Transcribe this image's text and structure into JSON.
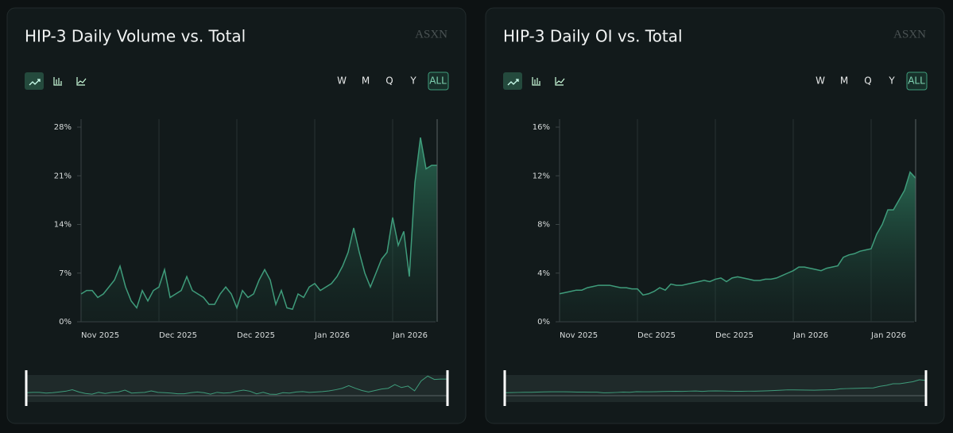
{
  "watermark": "ASXN",
  "controls": [
    "W",
    "M",
    "Q",
    "Y",
    "ALL"
  ],
  "chart_data": [
    {
      "type": "area",
      "title": "HIP-3 Daily Volume vs. Total",
      "color": "#3f9c7b",
      "categories": [
        "Nov 2025",
        null,
        null,
        null,
        null,
        null,
        null,
        null,
        null,
        null,
        null,
        null,
        null,
        null,
        "Dec 2025",
        null,
        null,
        null,
        null,
        null,
        null,
        null,
        null,
        null,
        null,
        null,
        null,
        null,
        "Dec 2025",
        null,
        null,
        null,
        null,
        null,
        null,
        null,
        null,
        null,
        null,
        null,
        null,
        null,
        "Jan 2026",
        null,
        null,
        null,
        null,
        null,
        null,
        null,
        null,
        null,
        null,
        null,
        null,
        null,
        "Jan 2026",
        null,
        null,
        null,
        null,
        null,
        null,
        null,
        null
      ],
      "values": [
        4,
        4.5,
        4.5,
        3.5,
        4,
        5,
        6,
        8,
        5,
        3,
        2,
        4.5,
        3,
        4.5,
        5,
        7.5,
        3.5,
        4,
        4.5,
        6.5,
        4.5,
        4,
        3.5,
        2.5,
        2.5,
        4,
        5,
        4,
        2,
        4.5,
        3.5,
        4,
        6,
        7.5,
        6,
        2.5,
        4.5,
        2,
        1.8,
        4,
        3.5,
        5,
        5.5,
        4.5,
        5,
        5.5,
        6.5,
        8,
        10,
        13.5,
        10,
        7,
        5,
        7,
        9,
        10,
        15,
        11,
        13,
        6.5,
        20,
        26.5,
        22,
        22.5,
        22.5
      ],
      "ylim": [
        0,
        28
      ],
      "yticks": [
        {
          "value": 0,
          "label": "0%"
        },
        {
          "value": 7,
          "label": "7%"
        },
        {
          "value": 14,
          "label": "14%"
        },
        {
          "value": 21,
          "label": "21%"
        },
        {
          "value": 28,
          "label": "28%"
        }
      ],
      "grid": true
    },
    {
      "type": "area",
      "title": "HIP-3 Daily OI vs. Total",
      "color": "#3f9c7b",
      "categories": [
        "Nov 2025",
        null,
        null,
        null,
        null,
        null,
        null,
        null,
        null,
        null,
        null,
        null,
        null,
        null,
        "Dec 2025",
        null,
        null,
        null,
        null,
        null,
        null,
        null,
        null,
        null,
        null,
        null,
        null,
        null,
        "Dec 2025",
        null,
        null,
        null,
        null,
        null,
        null,
        null,
        null,
        null,
        null,
        null,
        null,
        null,
        "Jan 2026",
        null,
        null,
        null,
        null,
        null,
        null,
        null,
        null,
        null,
        null,
        null,
        null,
        null,
        "Jan 2026",
        null,
        null,
        null,
        null,
        null,
        null,
        null,
        null
      ],
      "values": [
        2.3,
        2.4,
        2.5,
        2.6,
        2.6,
        2.8,
        2.9,
        3.0,
        3.0,
        3.0,
        2.9,
        2.8,
        2.8,
        2.7,
        2.7,
        2.2,
        2.3,
        2.5,
        2.8,
        2.6,
        3.1,
        3.0,
        3.0,
        3.1,
        3.2,
        3.3,
        3.4,
        3.3,
        3.5,
        3.6,
        3.3,
        3.6,
        3.7,
        3.6,
        3.5,
        3.4,
        3.4,
        3.5,
        3.5,
        3.6,
        3.8,
        4.0,
        4.2,
        4.5,
        4.5,
        4.4,
        4.3,
        4.2,
        4.4,
        4.5,
        4.6,
        5.3,
        5.5,
        5.6,
        5.8,
        5.9,
        6.0,
        7.2,
        8.0,
        9.2,
        9.2,
        10.0,
        10.8,
        12.3,
        11.8
      ],
      "ylim": [
        0,
        16
      ],
      "yticks": [
        {
          "value": 0,
          "label": "0%"
        },
        {
          "value": 4,
          "label": "4%"
        },
        {
          "value": 8,
          "label": "8%"
        },
        {
          "value": 12,
          "label": "12%"
        },
        {
          "value": 16,
          "label": "16%"
        }
      ],
      "grid": true
    }
  ]
}
